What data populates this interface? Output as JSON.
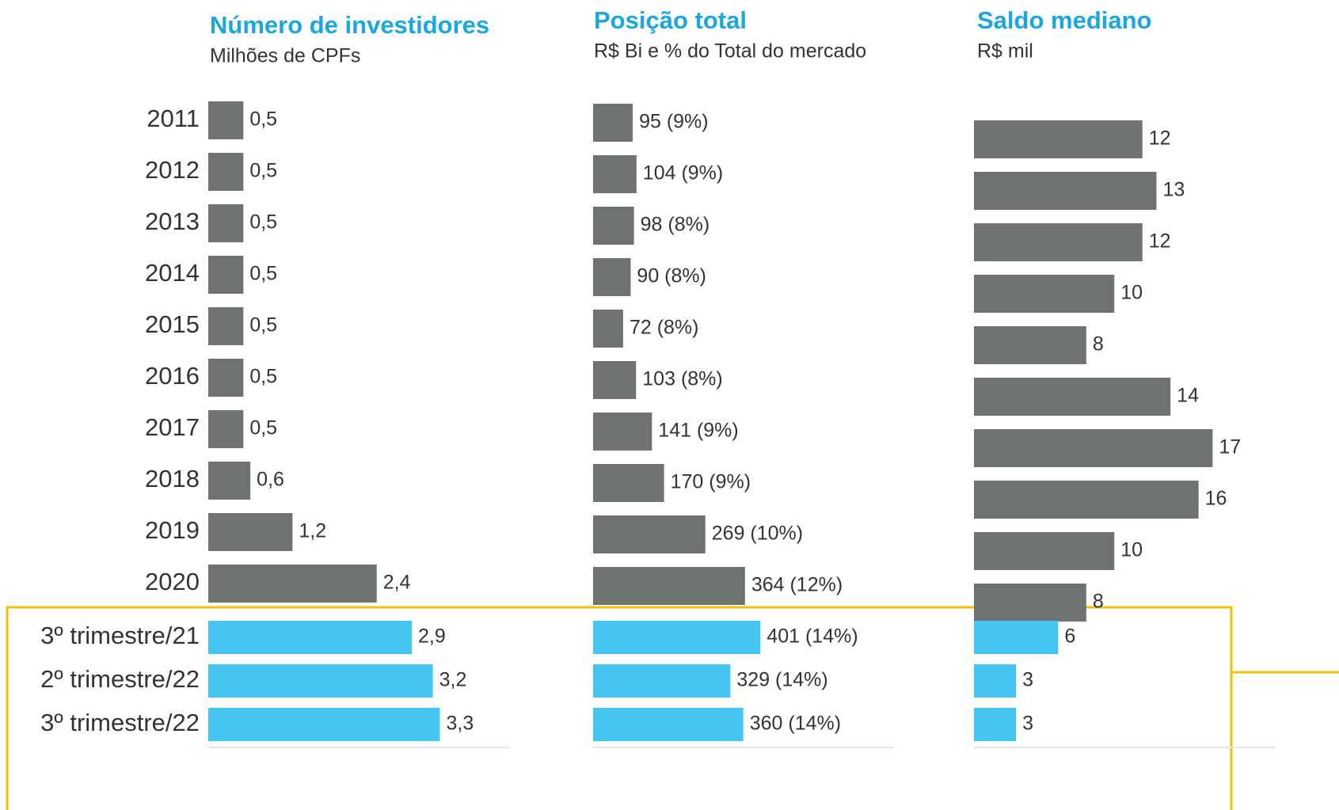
{
  "chart_data": [
    {
      "type": "bar",
      "orientation": "horizontal",
      "title": "Número de investidores",
      "subtitle": "Milhões de CPFs",
      "categories": [
        "2011",
        "2012",
        "2013",
        "2014",
        "2015",
        "2016",
        "2017",
        "2018",
        "2019",
        "2020",
        "3º trimestre/21",
        "2º trimestre/22",
        "3º trimestre/22"
      ],
      "values": [
        0.5,
        0.5,
        0.5,
        0.5,
        0.5,
        0.5,
        0.5,
        0.6,
        1.2,
        2.4,
        2.9,
        3.2,
        3.3
      ],
      "value_labels": [
        "0,5",
        "0,5",
        "0,5",
        "0,5",
        "0,5",
        "0,5",
        "0,5",
        "0,6",
        "1,2",
        "2,4",
        "2,9",
        "3,2",
        "3,3"
      ],
      "colors": [
        "#6e7372",
        "#6e7372",
        "#6e7372",
        "#6e7372",
        "#6e7372",
        "#6e7372",
        "#6e7372",
        "#6e7372",
        "#6e7372",
        "#6e7372",
        "#45c6f0",
        "#45c6f0",
        "#45c6f0"
      ],
      "xlim": [
        0,
        4.4
      ]
    },
    {
      "type": "bar",
      "orientation": "horizontal",
      "title": "Posição total",
      "subtitle": "R$ Bi e % do Total do mercado",
      "values": [
        95,
        104,
        98,
        90,
        72,
        103,
        141,
        170,
        269,
        364,
        401,
        329,
        360
      ],
      "value_labels": [
        "95 (9%)",
        "104 (9%)",
        "98 (8%)",
        "90 (8%)",
        "72 (8%)",
        "103 (8%)",
        "141 (9%)",
        "170 (9%)",
        "269 (10%)",
        "364 (12%)",
        "401 (14%)",
        "329 (14%)",
        "360 (14%)"
      ],
      "colors": [
        "#6e7372",
        "#6e7372",
        "#6e7372",
        "#6e7372",
        "#6e7372",
        "#6e7372",
        "#6e7372",
        "#6e7372",
        "#6e7372",
        "#6e7372",
        "#45c6f0",
        "#45c6f0",
        "#45c6f0"
      ],
      "xlim": [
        0,
        740
      ]
    },
    {
      "type": "bar",
      "orientation": "horizontal",
      "title": "Saldo mediano",
      "subtitle": "R$ mil",
      "values": [
        12,
        13,
        12,
        10,
        8,
        14,
        17,
        16,
        10,
        8,
        6,
        3,
        3
      ],
      "colors": [
        "#6e7372",
        "#6e7372",
        "#6e7372",
        "#6e7372",
        "#6e7372",
        "#6e7372",
        "#6e7372",
        "#6e7372",
        "#6e7372",
        "#6e7372",
        "#45c6f0",
        "#45c6f0",
        "#45c6f0"
      ],
      "xlim": [
        0,
        22
      ]
    }
  ]
}
